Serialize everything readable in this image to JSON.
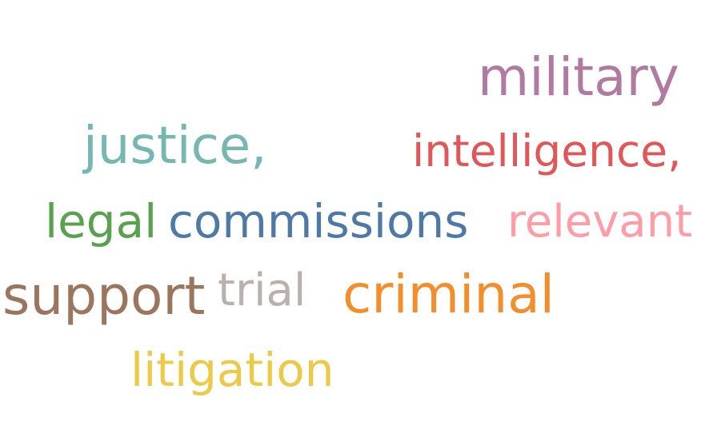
{
  "words": [
    {
      "text": "military",
      "color": "#b07aa1"
    },
    {
      "text": "justice,",
      "color": "#76b7b2"
    },
    {
      "text": "intelligence,",
      "color": "#e15759"
    },
    {
      "text": "legal",
      "color": "#59a14f"
    },
    {
      "text": "commissions",
      "color": "#4e79a7"
    },
    {
      "text": "relevant",
      "color": "#ff9da7"
    },
    {
      "text": "support",
      "color": "#9c755f"
    },
    {
      "text": "trial",
      "color": "#bab0ac"
    },
    {
      "text": "criminal",
      "color": "#f28e2b"
    },
    {
      "text": "litigation",
      "color": "#edc948"
    }
  ]
}
